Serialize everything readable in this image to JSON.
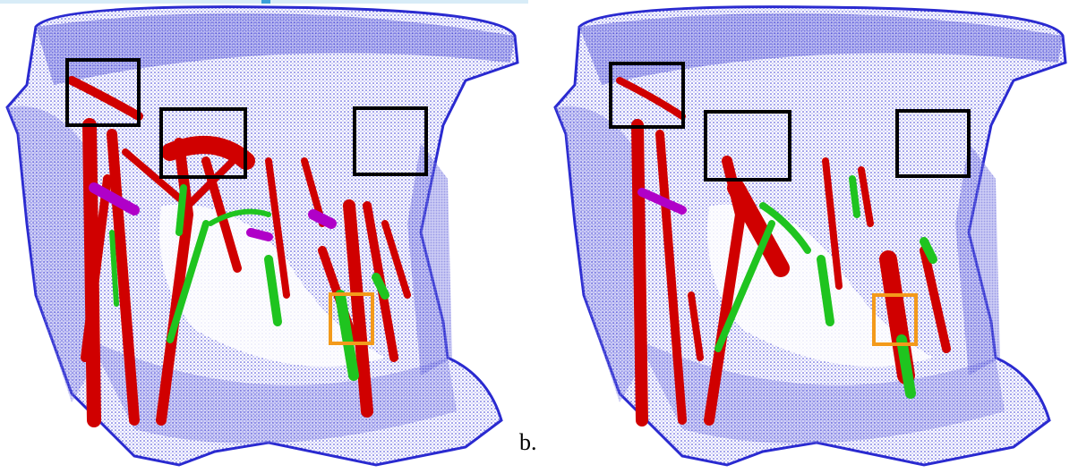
{
  "figure": {
    "panels": [
      {
        "id": "a",
        "caption": ""
      },
      {
        "id": "b",
        "caption": "b."
      }
    ]
  },
  "colors": {
    "mesh": "#2a2ad0",
    "structure_red": "#d00000",
    "structure_green": "#1fc41f",
    "structure_magenta": "#b000c8",
    "box_black": "#000000",
    "box_orange": "#f39a1b"
  }
}
